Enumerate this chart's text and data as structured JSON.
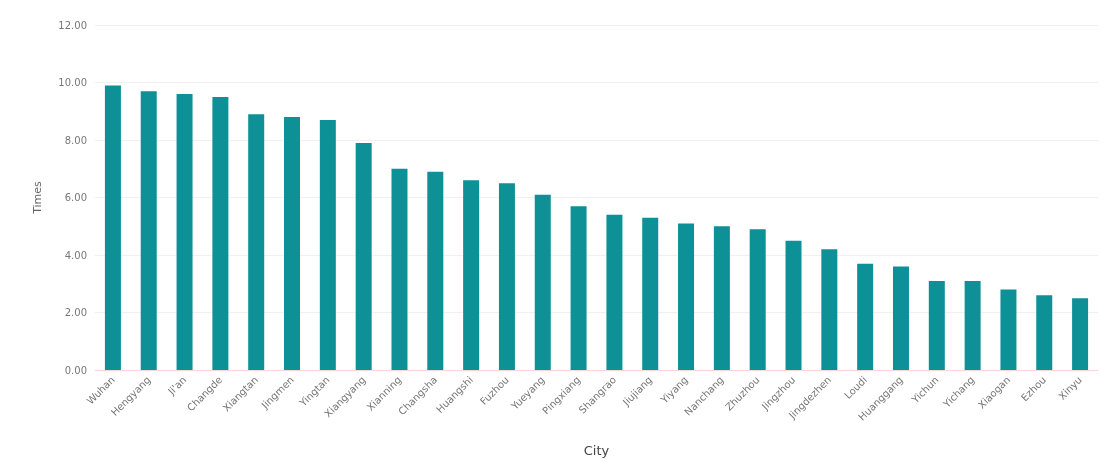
{
  "chart_data": {
    "type": "bar",
    "xlabel": "City",
    "ylabel": "Times",
    "categories": [
      "Wuhan",
      "Hengyang",
      "Ji'an",
      "Changde",
      "Xiangtan",
      "Jingmen",
      "Yingtan",
      "Xiangyang",
      "Xianning",
      "Changsha",
      "Huangshi",
      "Fuzhou",
      "Yueyang",
      "Pingxiang",
      "Shangrao",
      "Jiujiang",
      "Yiyang",
      "Nanchang",
      "Zhuzhou",
      "Jingzhou",
      "Jingdezhen",
      "Loudi",
      "Huanggang",
      "Yichun",
      "Yichang",
      "Xiaogan",
      "Ezhou",
      "Xinyu"
    ],
    "values": [
      9.9,
      9.7,
      9.6,
      9.5,
      8.9,
      8.8,
      8.7,
      7.9,
      7.0,
      6.9,
      6.6,
      6.5,
      6.1,
      5.7,
      5.4,
      5.3,
      5.1,
      5.0,
      4.9,
      4.5,
      4.2,
      3.7,
      3.6,
      3.1,
      3.1,
      2.8,
      2.6,
      2.5
    ],
    "color": "#0e9196",
    "ylim": [
      0,
      12
    ],
    "yticks": [
      {
        "value": 0,
        "label": "0.00"
      },
      {
        "value": 2,
        "label": "2.00"
      },
      {
        "value": 4,
        "label": "4.00"
      },
      {
        "value": 6,
        "label": "6.00"
      },
      {
        "value": 8,
        "label": "8.00"
      },
      {
        "value": 10,
        "label": "10.00"
      },
      {
        "value": 12,
        "label": "12.00"
      }
    ],
    "grid": "y"
  }
}
